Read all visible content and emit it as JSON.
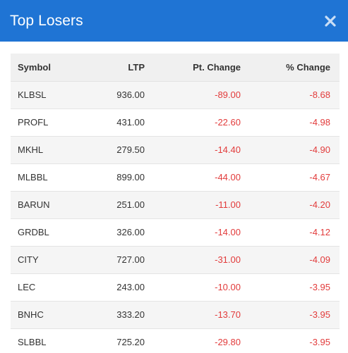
{
  "header": {
    "title": "Top Losers",
    "close_icon": "close-icon"
  },
  "table": {
    "columns": [
      "Symbol",
      "LTP",
      "Pt. Change",
      "% Change"
    ],
    "rows": [
      {
        "symbol": "KLBSL",
        "ltp": "936.00",
        "pt_change": "-89.00",
        "pct_change": "-8.68"
      },
      {
        "symbol": "PROFL",
        "ltp": "431.00",
        "pt_change": "-22.60",
        "pct_change": "-4.98"
      },
      {
        "symbol": "MKHL",
        "ltp": "279.50",
        "pt_change": "-14.40",
        "pct_change": "-4.90"
      },
      {
        "symbol": "MLBBL",
        "ltp": "899.00",
        "pt_change": "-44.00",
        "pct_change": "-4.67"
      },
      {
        "symbol": "BARUN",
        "ltp": "251.00",
        "pt_change": "-11.00",
        "pct_change": "-4.20"
      },
      {
        "symbol": "GRDBL",
        "ltp": "326.00",
        "pt_change": "-14.00",
        "pct_change": "-4.12"
      },
      {
        "symbol": "CITY",
        "ltp": "727.00",
        "pt_change": "-31.00",
        "pct_change": "-4.09"
      },
      {
        "symbol": "LEC",
        "ltp": "243.00",
        "pt_change": "-10.00",
        "pct_change": "-3.95"
      },
      {
        "symbol": "BNHC",
        "ltp": "333.20",
        "pt_change": "-13.70",
        "pct_change": "-3.95"
      },
      {
        "symbol": "SLBBL",
        "ltp": "725.20",
        "pt_change": "-29.80",
        "pct_change": "-3.95"
      }
    ]
  },
  "colors": {
    "header_bg": "#1f74d4",
    "negative": "#e23b3b"
  }
}
